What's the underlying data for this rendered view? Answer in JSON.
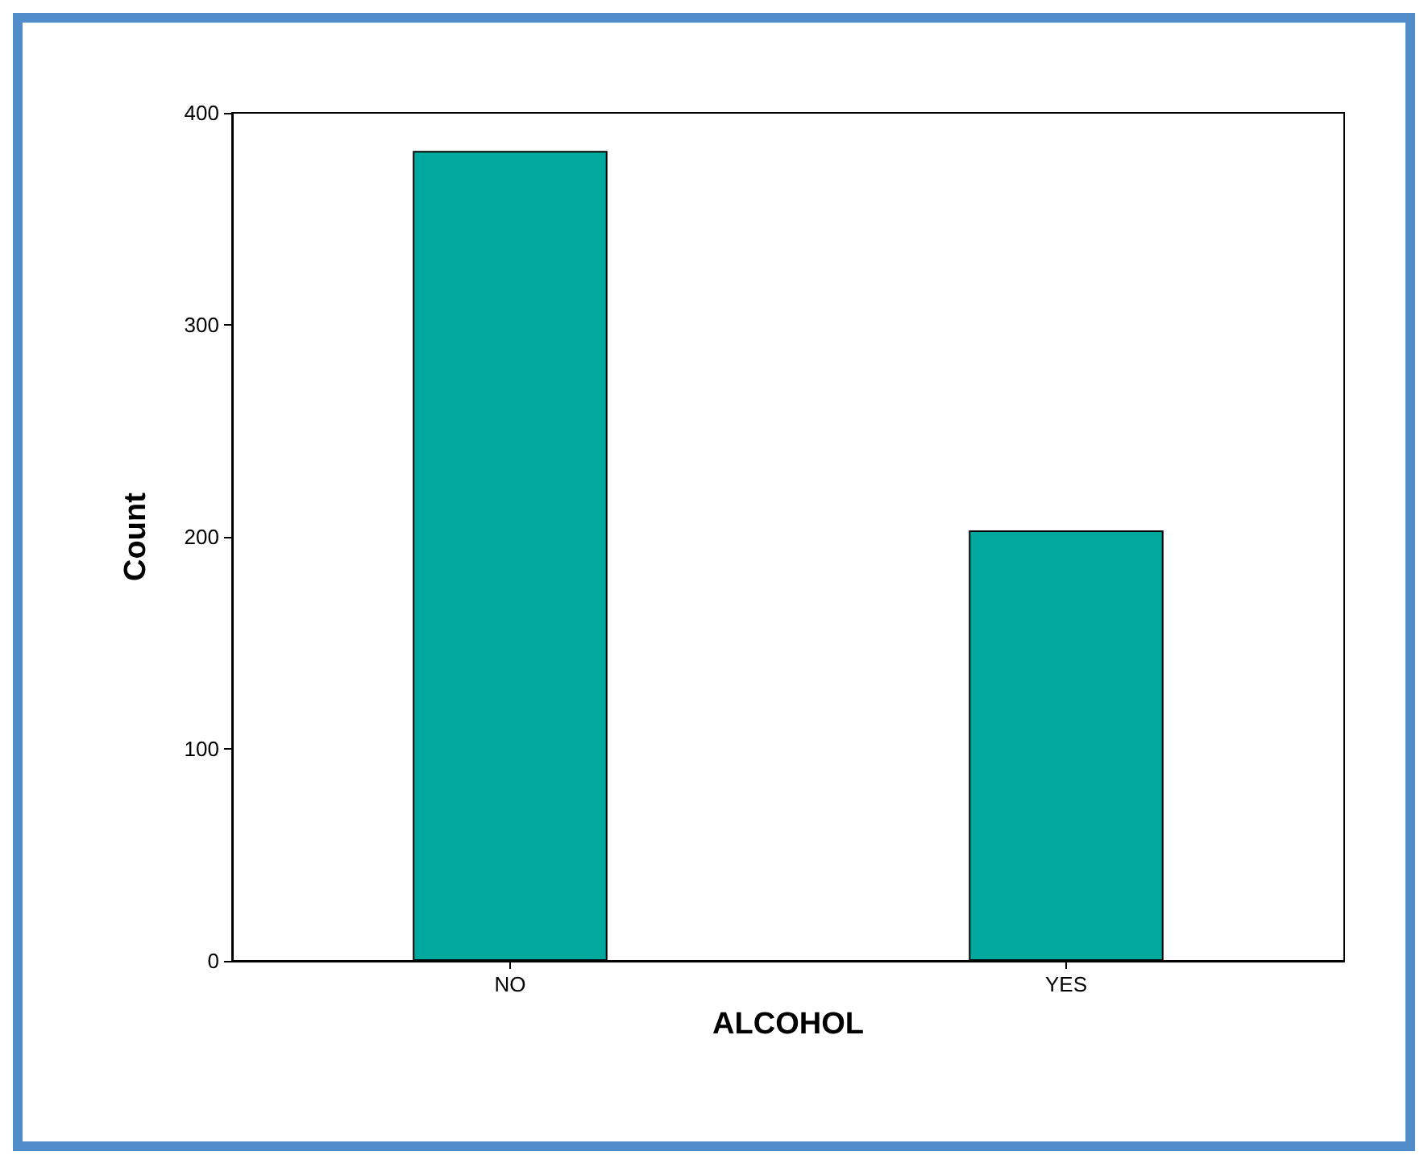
{
  "chart_data": {
    "type": "bar",
    "xlabel": "ALCOHOL",
    "ylabel": "Count",
    "categories": [
      "NO",
      "YES"
    ],
    "values": [
      382,
      203
    ],
    "color": "#00a89d",
    "ylim": [
      0,
      400
    ],
    "yticks": [
      0,
      100,
      200,
      300,
      400
    ],
    "grid": false
  }
}
